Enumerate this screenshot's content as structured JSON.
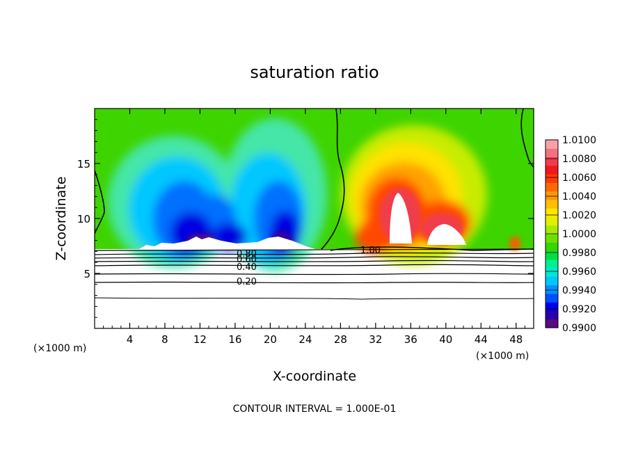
{
  "chart_data": {
    "type": "heatmap",
    "title": "saturation ratio",
    "xlabel": "X-coordinate",
    "ylabel": "Z-coordinate",
    "x_unit_left": "(×1000 m)",
    "x_unit_right": "(×1000 m)",
    "xlim": [
      0,
      50
    ],
    "ylim": [
      0,
      20
    ],
    "x_ticks": [
      4,
      8,
      12,
      16,
      20,
      24,
      28,
      32,
      36,
      40,
      44,
      48
    ],
    "y_ticks": [
      5,
      10,
      15
    ],
    "colorbar": {
      "min": 0.99,
      "max": 1.01,
      "labels": [
        "1.0100",
        "1.0080",
        "1.0060",
        "1.0040",
        "1.0020",
        "1.0000",
        "0.9980",
        "0.9960",
        "0.9940",
        "0.9920",
        "0.9900"
      ],
      "colors": [
        "#5a0a82",
        "#2a00a8",
        "#0000e6",
        "#0050ff",
        "#0090ff",
        "#00c8ff",
        "#00e8d0",
        "#00f090",
        "#00e040",
        "#33d600",
        "#6ee000",
        "#a8ea00",
        "#e0f000",
        "#ffe600",
        "#ffc000",
        "#ff9800",
        "#ff6a00",
        "#ff3a00",
        "#f01818",
        "#f03c4c",
        "#f57080",
        "#f8a0a8"
      ]
    },
    "contour_labels": [
      "0.80",
      "0.60",
      "0.40",
      "0.20",
      "1.00"
    ],
    "contour_interval_text": "CONTOUR INTERVAL = 1.000E-01"
  }
}
